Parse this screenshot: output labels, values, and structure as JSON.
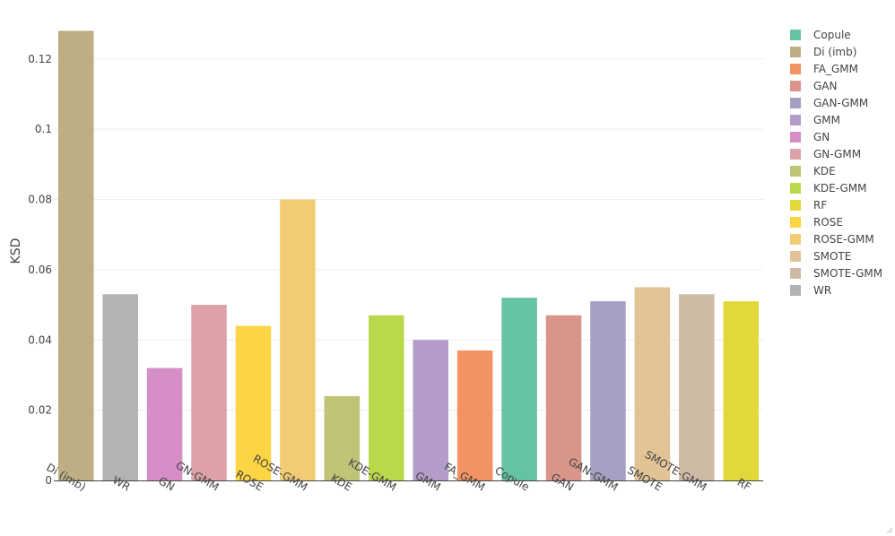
{
  "chart_data": {
    "type": "bar",
    "ylabel": "KSD",
    "xlabel": "",
    "ylim": [
      0,
      0.1304
    ],
    "yticks": [
      0,
      0.02,
      0.04,
      0.06,
      0.08,
      0.1,
      0.12
    ],
    "ytick_labels": [
      "0",
      "0.02",
      "0.04",
      "0.06",
      "0.08",
      "0.1",
      "0.12"
    ],
    "grid": true,
    "legend_position": "right",
    "categories": [
      "Di (imb)",
      "WR",
      "GN",
      "GN-GMM",
      "ROSE",
      "ROSE-GMM",
      "KDE",
      "KDE-GMM",
      "GMM",
      "FA_GMM",
      "Copule",
      "GAN",
      "GAN-GMM",
      "SMOTE",
      "SMOTE-GMM",
      "RF"
    ],
    "values": [
      0.128,
      0.053,
      0.032,
      0.05,
      0.044,
      0.08,
      0.024,
      0.047,
      0.04,
      0.037,
      0.052,
      0.047,
      0.051,
      0.055,
      0.053,
      0.051
    ],
    "legend": [
      "Copule",
      "Di (imb)",
      "FA_GMM",
      "GAN",
      "GAN-GMM",
      "GMM",
      "GN",
      "GN-GMM",
      "KDE",
      "KDE-GMM",
      "RF",
      "ROSE",
      "ROSE-GMM",
      "SMOTE",
      "SMOTE-GMM",
      "WR"
    ],
    "colors": {
      "Copule": "#66c2a5",
      "Di (imb)": "#bdae84",
      "FA_GMM": "#f39263",
      "GAN": "#d9958a",
      "GAN-GMM": "#a4a0c1",
      "GMM": "#b39cca",
      "GN": "#d68ec6",
      "GN-GMM": "#dda2a8",
      "KDE": "#bfc477",
      "KDE-GMM": "#b9d84c",
      "RF": "#e2d83a",
      "ROSE": "#fbd543",
      "ROSE-GMM": "#f1cc74",
      "SMOTE": "#e2c395",
      "SMOTE-GMM": "#cdbba5",
      "WR": "#b3b3b3"
    }
  }
}
